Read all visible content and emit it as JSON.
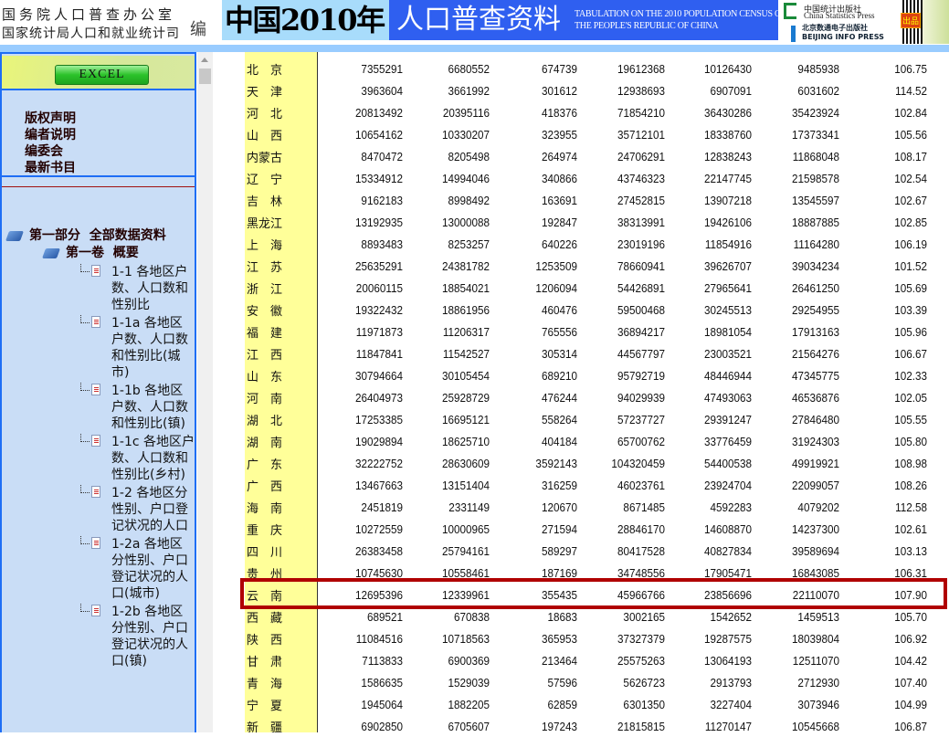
{
  "header": {
    "org_line1": "国务院人口普查办公室",
    "org_line2": "国家统计局人口和就业统计司",
    "editor": "编",
    "title_part1": "中国2010年",
    "title_part2": "人口普查资料",
    "title_en_line1": "TABULATION ON THE 2010 POPULATION CENSUS OF",
    "title_en_line2": "THE PEOPLE'S REPUBLIC OF CHINA",
    "publisher1_cn": "中国统计出版社",
    "publisher1_en": "China Statistics Press",
    "publisher2": "北京数通电子出版社 BEIJING INFO PRESS",
    "seal": "出品"
  },
  "sidebar": {
    "excel_button": "EXCEL",
    "links": [
      "版权声明",
      "编者说明",
      "编委会",
      "最新书目"
    ],
    "part": "第一部分  全部数据资料",
    "volume": "第一卷  概要",
    "items": [
      "1-1  各地区户数、人口数和性别比",
      "1-1a 各地区户数、人口数和性别比(城市)",
      "1-1b 各地区户数、人口数和性别比(镇)",
      "1-1c 各地区户数、人口数和性别比(乡村)",
      "1-2 各地区分性别、户口登记状况的人口",
      "1-2a 各地区分性别、户口登记状况的人口(城市)",
      "1-2b 各地区分性别、户口登记状况的人口(镇)"
    ]
  },
  "colors": {
    "highlight": "#b00000",
    "province_column": "#ffff99",
    "sidebar_bg": "#c9ddf6",
    "title_blue": "#2f5ff0"
  },
  "table": {
    "highlighted_row": "云　南",
    "rows": [
      [
        "北　京",
        "7355291",
        "6680552",
        "674739",
        "19612368",
        "10126430",
        "9485938",
        "106.75"
      ],
      [
        "天　津",
        "3963604",
        "3661992",
        "301612",
        "12938693",
        "6907091",
        "6031602",
        "114.52"
      ],
      [
        "河　北",
        "20813492",
        "20395116",
        "418376",
        "71854210",
        "36430286",
        "35423924",
        "102.84"
      ],
      [
        "山　西",
        "10654162",
        "10330207",
        "323955",
        "35712101",
        "18338760",
        "17373341",
        "105.56"
      ],
      [
        "内蒙古",
        "8470472",
        "8205498",
        "264974",
        "24706291",
        "12838243",
        "11868048",
        "108.17"
      ],
      [
        "辽　宁",
        "15334912",
        "14994046",
        "340866",
        "43746323",
        "22147745",
        "21598578",
        "102.54"
      ],
      [
        "吉　林",
        "9162183",
        "8998492",
        "163691",
        "27452815",
        "13907218",
        "13545597",
        "102.67"
      ],
      [
        "黑龙江",
        "13192935",
        "13000088",
        "192847",
        "38313991",
        "19426106",
        "18887885",
        "102.85"
      ],
      [
        "上　海",
        "8893483",
        "8253257",
        "640226",
        "23019196",
        "11854916",
        "11164280",
        "106.19"
      ],
      [
        "江　苏",
        "25635291",
        "24381782",
        "1253509",
        "78660941",
        "39626707",
        "39034234",
        "101.52"
      ],
      [
        "浙　江",
        "20060115",
        "18854021",
        "1206094",
        "54426891",
        "27965641",
        "26461250",
        "105.69"
      ],
      [
        "安　徽",
        "19322432",
        "18861956",
        "460476",
        "59500468",
        "30245513",
        "29254955",
        "103.39"
      ],
      [
        "福　建",
        "11971873",
        "11206317",
        "765556",
        "36894217",
        "18981054",
        "17913163",
        "105.96"
      ],
      [
        "江　西",
        "11847841",
        "11542527",
        "305314",
        "44567797",
        "23003521",
        "21564276",
        "106.67"
      ],
      [
        "山　东",
        "30794664",
        "30105454",
        "689210",
        "95792719",
        "48446944",
        "47345775",
        "102.33"
      ],
      [
        "河　南",
        "26404973",
        "25928729",
        "476244",
        "94029939",
        "47493063",
        "46536876",
        "102.05"
      ],
      [
        "湖　北",
        "17253385",
        "16695121",
        "558264",
        "57237727",
        "29391247",
        "27846480",
        "105.55"
      ],
      [
        "湖　南",
        "19029894",
        "18625710",
        "404184",
        "65700762",
        "33776459",
        "31924303",
        "105.80"
      ],
      [
        "广　东",
        "32222752",
        "28630609",
        "3592143",
        "104320459",
        "54400538",
        "49919921",
        "108.98"
      ],
      [
        "广　西",
        "13467663",
        "13151404",
        "316259",
        "46023761",
        "23924704",
        "22099057",
        "108.26"
      ],
      [
        "海　南",
        "2451819",
        "2331149",
        "120670",
        "8671485",
        "4592283",
        "4079202",
        "112.58"
      ],
      [
        "重　庆",
        "10272559",
        "10000965",
        "271594",
        "28846170",
        "14608870",
        "14237300",
        "102.61"
      ],
      [
        "四　川",
        "26383458",
        "25794161",
        "589297",
        "80417528",
        "40827834",
        "39589694",
        "103.13"
      ],
      [
        "贵　州",
        "10745630",
        "10558461",
        "187169",
        "34748556",
        "17905471",
        "16843085",
        "106.31"
      ],
      [
        "云　南",
        "12695396",
        "12339961",
        "355435",
        "45966766",
        "23856696",
        "22110070",
        "107.90"
      ],
      [
        "西　藏",
        "689521",
        "670838",
        "18683",
        "3002165",
        "1542652",
        "1459513",
        "105.70"
      ],
      [
        "陕　西",
        "11084516",
        "10718563",
        "365953",
        "37327379",
        "19287575",
        "18039804",
        "106.92"
      ],
      [
        "甘　肃",
        "7113833",
        "6900369",
        "213464",
        "25575263",
        "13064193",
        "12511070",
        "104.42"
      ],
      [
        "青　海",
        "1586635",
        "1529039",
        "57596",
        "5626723",
        "2913793",
        "2712930",
        "107.40"
      ],
      [
        "宁　夏",
        "1945064",
        "1882205",
        "62859",
        "6301350",
        "3227404",
        "3073946",
        "104.99"
      ],
      [
        "新　疆",
        "6902850",
        "6705607",
        "197243",
        "21815815",
        "11270147",
        "10545668",
        "106.87"
      ]
    ]
  }
}
